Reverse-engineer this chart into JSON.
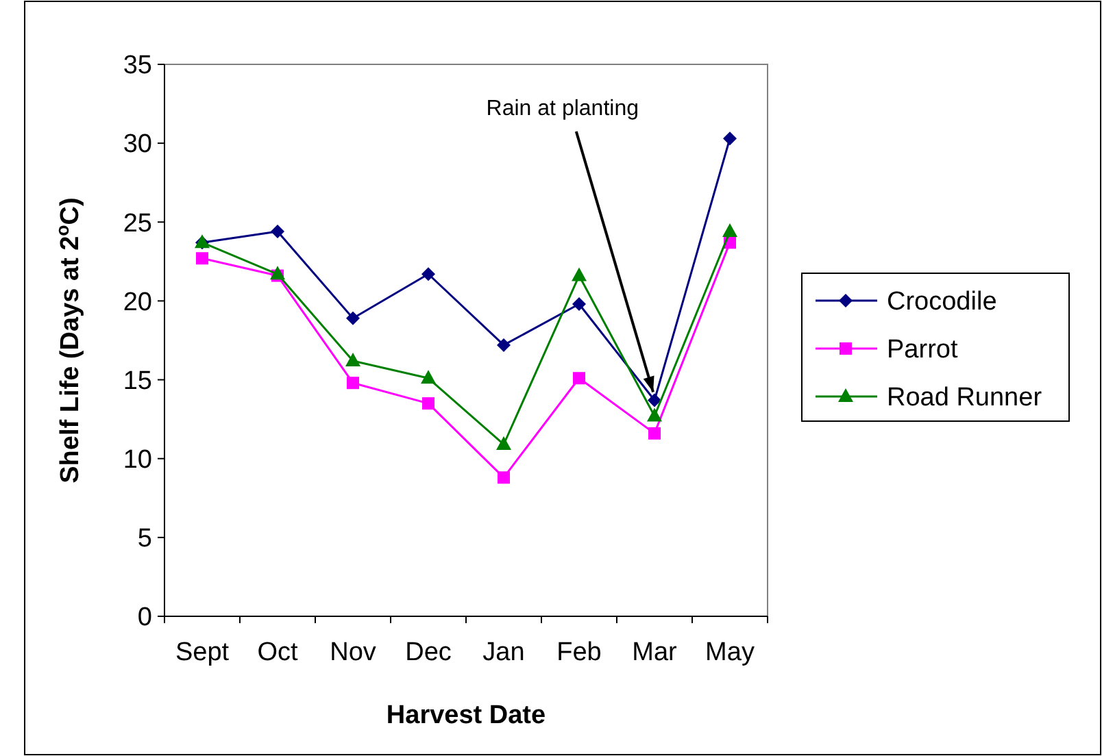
{
  "chart_data": {
    "type": "line",
    "xlabel": "Harvest Date",
    "ylabel": "Shelf Life (Days at 2$^{o}$C)",
    "categories": [
      "Sept",
      "Oct",
      "Nov",
      "Dec",
      "Jan",
      "Feb",
      "Mar",
      "May"
    ],
    "series": [
      {
        "name": "Crocodile",
        "color": "#000080",
        "marker": "diamond",
        "values": [
          23.7,
          24.4,
          18.9,
          21.7,
          17.2,
          19.8,
          13.7,
          30.3
        ]
      },
      {
        "name": "Parrot",
        "color": "#ff00ff",
        "marker": "square",
        "values": [
          22.7,
          21.6,
          14.8,
          13.5,
          8.8,
          15.1,
          11.6,
          23.7
        ]
      },
      {
        "name": "Road Runner",
        "color": "#008000",
        "marker": "triangle",
        "values": [
          23.7,
          21.7,
          16.2,
          15.1,
          10.9,
          21.6,
          12.7,
          24.4
        ]
      }
    ],
    "ylim": [
      0,
      35
    ],
    "yticks": [
      0,
      5,
      10,
      15,
      20,
      25,
      30,
      35
    ],
    "grid": false,
    "legend": "right",
    "line_style": "solid",
    "annotations": [
      {
        "text": "Rain at planting",
        "x": "Mar",
        "y": 13.7
      }
    ]
  }
}
